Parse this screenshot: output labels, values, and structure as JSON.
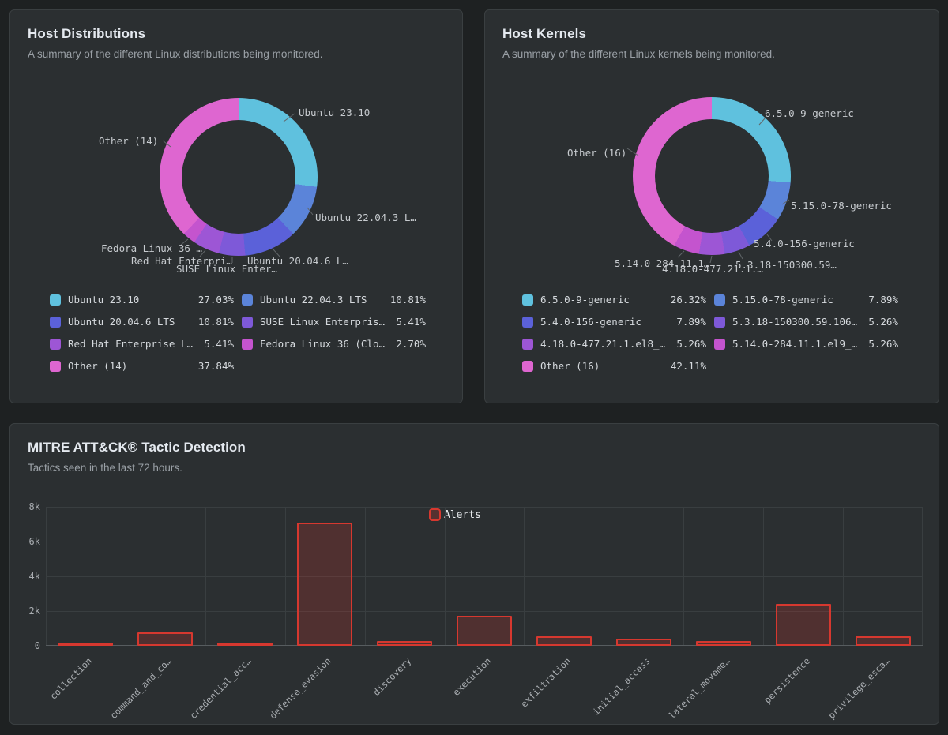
{
  "palette": [
    "#5FC1DE",
    "#5B84D9",
    "#5B61D9",
    "#7E59D8",
    "#9D56D5",
    "#C454CE",
    "#DE66D0"
  ],
  "alert_color": "#D6382F",
  "panels": {
    "distributions": {
      "title": "Host Distributions",
      "subtitle": "A summary of the different Linux distributions being monitored.",
      "callouts": [
        "Ubuntu 23.10",
        "Ubuntu 22.04.3 L…",
        "Ubuntu 20.04.6 L…",
        "SUSE Linux Enter…",
        "Red Hat Enterpri…",
        "Fedora Linux 36 …",
        "Other (14)"
      ],
      "legend": [
        {
          "label": "Ubuntu 23.10",
          "value": "27.03%"
        },
        {
          "label": "Ubuntu 22.04.3 LTS",
          "value": "10.81%"
        },
        {
          "label": "Ubuntu 20.04.6 LTS",
          "value": "10.81%"
        },
        {
          "label": "SUSE Linux Enterpris…",
          "value": "5.41%"
        },
        {
          "label": "Red Hat Enterprise L…",
          "value": "5.41%"
        },
        {
          "label": "Fedora Linux 36 (Clo…",
          "value": "2.70%"
        },
        {
          "label": "Other (14)",
          "value": "37.84%"
        }
      ]
    },
    "kernels": {
      "title": "Host Kernels",
      "subtitle": "A summary of the different Linux kernels being monitored.",
      "callouts": [
        "6.5.0-9-generic",
        "5.15.0-78-generic",
        "5.4.0-156-generic",
        "5.3.18-150300.59…",
        "4.18.0-477.21.1.…",
        "5.14.0-284.11.1…",
        "Other (16)"
      ],
      "legend": [
        {
          "label": "6.5.0-9-generic",
          "value": "26.32%"
        },
        {
          "label": "5.15.0-78-generic",
          "value": "7.89%"
        },
        {
          "label": "5.4.0-156-generic",
          "value": "7.89%"
        },
        {
          "label": "5.3.18-150300.59.106…",
          "value": "5.26%"
        },
        {
          "label": "4.18.0-477.21.1.el8_…",
          "value": "5.26%"
        },
        {
          "label": "5.14.0-284.11.1.el9_…",
          "value": "5.26%"
        },
        {
          "label": "Other (16)",
          "value": "42.11%"
        }
      ]
    },
    "mitre": {
      "title": "MITRE ATT&CK® Tactic Detection",
      "subtitle": "Tactics seen in the last 72 hours.",
      "legend_label": "Alerts"
    }
  },
  "chart_data": [
    {
      "type": "pie",
      "title": "Host Distributions",
      "donut": true,
      "labels": [
        "Ubuntu 23.10",
        "Ubuntu 22.04.3 LTS",
        "Ubuntu 20.04.6 LTS",
        "SUSE Linux Enterpris…",
        "Red Hat Enterprise L…",
        "Fedora Linux 36 (Clo…",
        "Other (14)"
      ],
      "values": [
        27.03,
        10.81,
        10.81,
        5.41,
        5.41,
        2.7,
        37.84
      ],
      "unit": "percent",
      "legend_position": "bottom"
    },
    {
      "type": "pie",
      "title": "Host Kernels",
      "donut": true,
      "labels": [
        "6.5.0-9-generic",
        "5.15.0-78-generic",
        "5.4.0-156-generic",
        "5.3.18-150300.59.106…",
        "4.18.0-477.21.1.el8_…",
        "5.14.0-284.11.1.el9_…",
        "Other (16)"
      ],
      "values": [
        26.32,
        7.89,
        7.89,
        5.26,
        5.26,
        5.26,
        42.11
      ],
      "unit": "percent",
      "legend_position": "bottom"
    },
    {
      "type": "bar",
      "title": "MITRE ATT&CK® Tactic Detection",
      "categories": [
        "collection",
        "command_and_co…",
        "credential_acc…",
        "defense_evasion",
        "discovery",
        "execution",
        "exfiltration",
        "initial_access",
        "lateral_moveme…",
        "persistence",
        "privilege_esca…"
      ],
      "series": [
        {
          "name": "Alerts",
          "values": [
            130,
            790,
            170,
            7100,
            280,
            1740,
            560,
            410,
            250,
            2390,
            560
          ]
        }
      ],
      "ylim": [
        0,
        8000
      ],
      "yticks": [
        "0",
        "2k",
        "4k",
        "6k",
        "8k"
      ],
      "grid": true,
      "legend_position": "top-center"
    }
  ]
}
